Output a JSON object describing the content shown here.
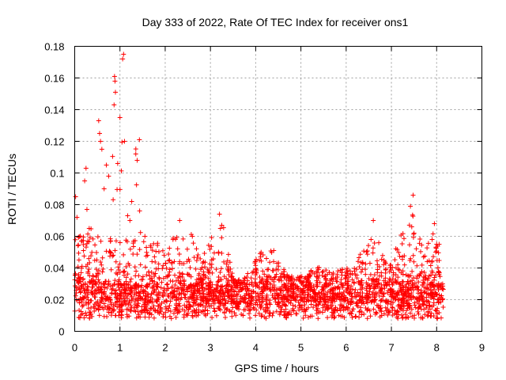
{
  "chart_data": {
    "type": "scatter",
    "title": "Day 333 of 2022, Rate Of TEC Index for receiver ons1",
    "xlabel": "GPS time / hours",
    "ylabel": "ROTI / TECUs",
    "xlim": [
      0,
      9
    ],
    "ylim": [
      0,
      0.18
    ],
    "x_ticks": [
      0,
      1,
      2,
      3,
      4,
      5,
      6,
      7,
      8,
      9
    ],
    "y_ticks": [
      0,
      0.02,
      0.04,
      0.06,
      0.08,
      0.1,
      0.12,
      0.14,
      0.16,
      0.18
    ],
    "x_tick_labels": [
      "0",
      "1",
      "2",
      "3",
      "4",
      "5",
      "6",
      "7",
      "8",
      "9"
    ],
    "y_tick_labels": [
      "0",
      "0.02",
      "0.04",
      "0.06",
      "0.08",
      "0.1",
      "0.12",
      "0.14",
      "0.16",
      "0.18"
    ],
    "grid": true,
    "marker": "plus",
    "color": "#ff0000",
    "data_x_range": [
      0,
      8.15
    ],
    "band_lower": 0.008,
    "envelope": [
      [
        0.0,
        0.085
      ],
      [
        0.1,
        0.075
      ],
      [
        0.2,
        0.103
      ],
      [
        0.3,
        0.065
      ],
      [
        0.4,
        0.08
      ],
      [
        0.5,
        0.125
      ],
      [
        0.55,
        0.133
      ],
      [
        0.6,
        0.13
      ],
      [
        0.7,
        0.12
      ],
      [
        0.8,
        0.1
      ],
      [
        0.85,
        0.16
      ],
      [
        0.9,
        0.155
      ],
      [
        1.0,
        0.12
      ],
      [
        1.05,
        0.175
      ],
      [
        1.1,
        0.12
      ],
      [
        1.2,
        0.08
      ],
      [
        1.3,
        0.12
      ],
      [
        1.4,
        0.12
      ],
      [
        1.5,
        0.06
      ],
      [
        1.7,
        0.06
      ],
      [
        1.8,
        0.06
      ],
      [
        2.0,
        0.05
      ],
      [
        2.2,
        0.06
      ],
      [
        2.3,
        0.07
      ],
      [
        2.4,
        0.06
      ],
      [
        2.6,
        0.062
      ],
      [
        2.8,
        0.045
      ],
      [
        3.0,
        0.06
      ],
      [
        3.2,
        0.074
      ],
      [
        3.3,
        0.065
      ],
      [
        3.5,
        0.034
      ],
      [
        3.7,
        0.032
      ],
      [
        3.9,
        0.04
      ],
      [
        4.1,
        0.05
      ],
      [
        4.3,
        0.05
      ],
      [
        4.4,
        0.052
      ],
      [
        4.6,
        0.04
      ],
      [
        4.8,
        0.035
      ],
      [
        5.0,
        0.035
      ],
      [
        5.3,
        0.04
      ],
      [
        5.6,
        0.042
      ],
      [
        5.8,
        0.04
      ],
      [
        6.0,
        0.04
      ],
      [
        6.3,
        0.05
      ],
      [
        6.5,
        0.06
      ],
      [
        6.6,
        0.07
      ],
      [
        6.8,
        0.05
      ],
      [
        7.0,
        0.045
      ],
      [
        7.2,
        0.06
      ],
      [
        7.4,
        0.08
      ],
      [
        7.45,
        0.086
      ],
      [
        7.6,
        0.06
      ],
      [
        7.8,
        0.055
      ],
      [
        7.95,
        0.068
      ],
      [
        8.05,
        0.06
      ],
      [
        8.15,
        0.045
      ]
    ],
    "peaks": [
      {
        "x": 1.08,
        "y": 0.175
      },
      {
        "x": 1.06,
        "y": 0.172
      },
      {
        "x": 0.88,
        "y": 0.161
      },
      {
        "x": 0.89,
        "y": 0.158
      },
      {
        "x": 0.9,
        "y": 0.151
      },
      {
        "x": 0.87,
        "y": 0.143
      },
      {
        "x": 1.0,
        "y": 0.135
      },
      {
        "x": 0.53,
        "y": 0.133
      },
      {
        "x": 0.55,
        "y": 0.125
      },
      {
        "x": 0.57,
        "y": 0.12
      },
      {
        "x": 0.6,
        "y": 0.115
      },
      {
        "x": 1.1,
        "y": 0.12
      },
      {
        "x": 1.43,
        "y": 0.121
      },
      {
        "x": 1.35,
        "y": 0.112
      },
      {
        "x": 1.38,
        "y": 0.108
      },
      {
        "x": 0.25,
        "y": 0.103
      },
      {
        "x": 0.22,
        "y": 0.095
      },
      {
        "x": 0.7,
        "y": 0.105
      },
      {
        "x": 0.75,
        "y": 0.098
      },
      {
        "x": 0.95,
        "y": 0.106
      },
      {
        "x": 0.65,
        "y": 0.09
      },
      {
        "x": 0.02,
        "y": 0.085
      },
      {
        "x": 0.05,
        "y": 0.072
      },
      {
        "x": 0.27,
        "y": 0.077
      },
      {
        "x": 0.32,
        "y": 0.065
      },
      {
        "x": 1.17,
        "y": 0.073
      },
      {
        "x": 1.22,
        "y": 0.07
      },
      {
        "x": 1.26,
        "y": 0.082
      },
      {
        "x": 2.32,
        "y": 0.07
      },
      {
        "x": 2.6,
        "y": 0.06
      },
      {
        "x": 3.2,
        "y": 0.074
      },
      {
        "x": 3.25,
        "y": 0.067
      },
      {
        "x": 3.22,
        "y": 0.065
      },
      {
        "x": 4.4,
        "y": 0.051
      },
      {
        "x": 4.1,
        "y": 0.049
      },
      {
        "x": 6.6,
        "y": 0.07
      },
      {
        "x": 6.55,
        "y": 0.058
      },
      {
        "x": 7.42,
        "y": 0.079
      },
      {
        "x": 7.48,
        "y": 0.086
      },
      {
        "x": 7.45,
        "y": 0.066
      },
      {
        "x": 7.5,
        "y": 0.062
      },
      {
        "x": 7.95,
        "y": 0.068
      },
      {
        "x": 7.9,
        "y": 0.058
      },
      {
        "x": 8.0,
        "y": 0.055
      },
      {
        "x": 7.98,
        "y": 0.05
      }
    ]
  }
}
